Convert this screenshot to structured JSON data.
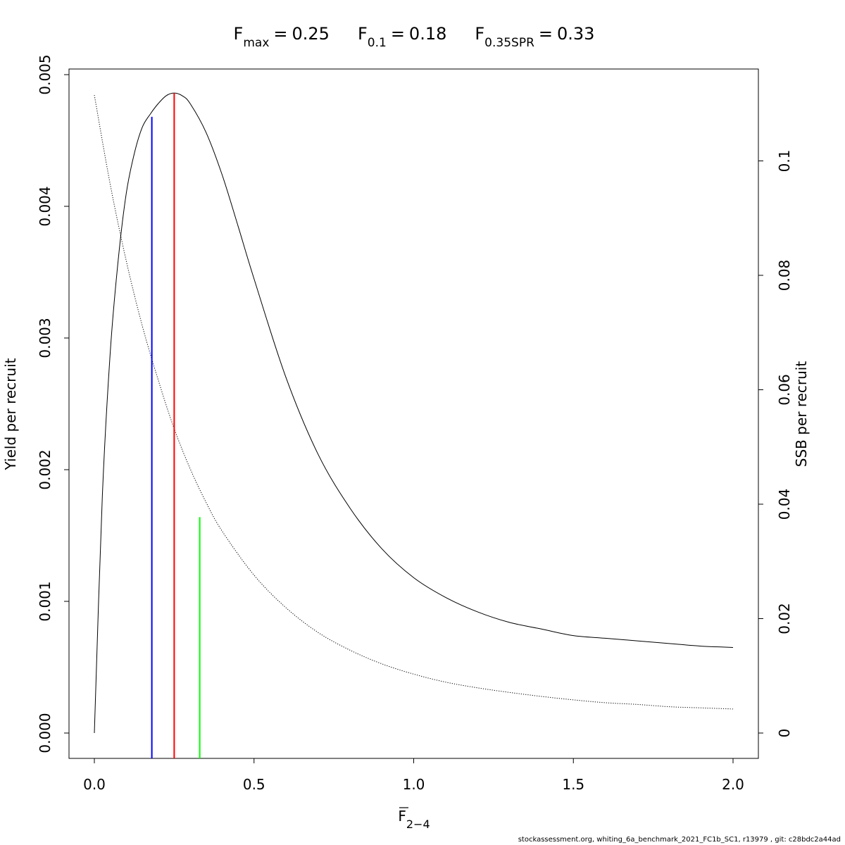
{
  "chart_data": {
    "type": "line",
    "title": {
      "fmax": {
        "base": "F",
        "sub": "max",
        "value": "0.25"
      },
      "f01": {
        "base": "F",
        "sub": "0.1",
        "value": "0.18"
      },
      "fspr": {
        "base": "F",
        "sub": "0.35SPR",
        "value": "0.33"
      }
    },
    "xlabel": {
      "base": "F",
      "sub": "2−4",
      "overbar": true
    },
    "ylabel_left": "Yield per recruit",
    "ylabel_right": "SSB per recruit",
    "xlim": [
      0,
      2
    ],
    "ylim_left": [
      0,
      0.005
    ],
    "ylim_right": [
      0,
      0.12
    ],
    "x_ticks": [
      0.0,
      0.5,
      1.0,
      1.5,
      2.0
    ],
    "x_tick_labels": [
      "0.0",
      "0.5",
      "1.0",
      "1.5",
      "2.0"
    ],
    "y_left_ticks": [
      0,
      0.001,
      0.002,
      0.003,
      0.004,
      0.005
    ],
    "y_left_tick_labels": [
      "0.000",
      "0.001",
      "0.002",
      "0.003",
      "0.004",
      "0.005"
    ],
    "y_right_ticks": [
      0,
      0.02,
      0.04,
      0.06,
      0.08,
      0.1
    ],
    "y_right_tick_labels": [
      "0",
      "0.02",
      "0.04",
      "0.06",
      "0.08",
      "0.1"
    ],
    "series": [
      {
        "axis": "left",
        "style": "solid",
        "color": "#000000",
        "x": [
          0,
          0.025,
          0.05,
          0.075,
          0.1,
          0.125,
          0.15,
          0.175,
          0.2,
          0.225,
          0.25,
          0.275,
          0.3,
          0.35,
          0.4,
          0.45,
          0.5,
          0.6,
          0.7,
          0.8,
          0.9,
          1.0,
          1.1,
          1.2,
          1.3,
          1.4,
          1.5,
          1.6,
          1.7,
          1.8,
          1.9,
          2.0
        ],
        "values": [
          0,
          0.0018,
          0.0029,
          0.0036,
          0.0041,
          0.0044,
          0.0046,
          0.0047,
          0.00478,
          0.00484,
          0.00486,
          0.00484,
          0.00478,
          0.00456,
          0.00424,
          0.00385,
          0.00345,
          0.0027,
          0.00212,
          0.00171,
          0.0014,
          0.00118,
          0.00103,
          0.00092,
          0.00084,
          0.00079,
          0.00074,
          0.00072,
          0.0007,
          0.00068,
          0.00066,
          0.00065
        ]
      },
      {
        "axis": "right",
        "style": "dotted",
        "color": "#000000",
        "x": [
          0,
          0.05,
          0.1,
          0.15,
          0.2,
          0.25,
          0.3,
          0.35,
          0.4,
          0.5,
          0.6,
          0.7,
          0.8,
          0.9,
          1.0,
          1.1,
          1.2,
          1.3,
          1.4,
          1.5,
          1.6,
          1.7,
          1.8,
          1.9,
          2.0
        ],
        "values": [
          0.1115,
          0.0958,
          0.0825,
          0.0712,
          0.0617,
          0.0532,
          0.0462,
          0.0403,
          0.0353,
          0.0276,
          0.0219,
          0.0176,
          0.0145,
          0.0121,
          0.0103,
          0.0089,
          0.0079,
          0.0071,
          0.0064,
          0.0058,
          0.0053,
          0.005,
          0.0046,
          0.0044,
          0.0042
        ]
      }
    ],
    "vlines": [
      {
        "x": 0.18,
        "top": 0.00468,
        "color": "#0000ff",
        "ref": "F0.1"
      },
      {
        "x": 0.25,
        "top": 0.00486,
        "color": "#ff0000",
        "ref": "Fmax"
      },
      {
        "x": 0.33,
        "top": 0.00164,
        "color": "#00ff00",
        "ref": "F0.35SPR"
      }
    ],
    "footer": "stockassessment.org, whiting_6a_benchmark_2021_FC1b_SC1, r13979 , git: c28bdc2a44ad"
  }
}
